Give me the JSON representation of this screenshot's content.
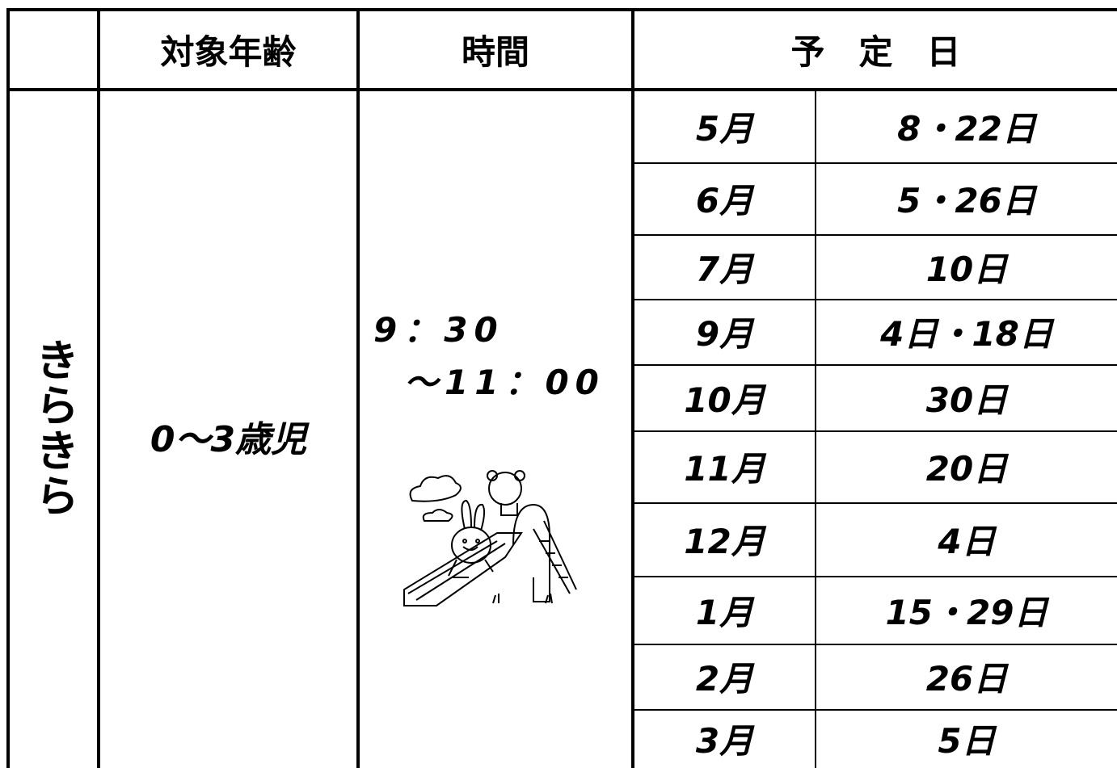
{
  "table": {
    "header": {
      "age": "対象年齢",
      "time": "時間",
      "dates": "予　定　日"
    },
    "group": "きらきら",
    "age": "0〜3歳児",
    "time": [
      "9：30",
      "〜11：00"
    ],
    "rows": [
      [
        "5月",
        "8・22日"
      ],
      [
        "6月",
        "5・26日"
      ],
      [
        "7月",
        "10日"
      ],
      [
        "9月",
        "4日・18日"
      ],
      [
        "10月",
        "30日"
      ],
      [
        "11月",
        "20日"
      ],
      [
        "12月",
        "4日"
      ],
      [
        "1月",
        "15・29日"
      ],
      [
        "2月",
        "26日"
      ],
      [
        "3月",
        "5日"
      ]
    ]
  }
}
